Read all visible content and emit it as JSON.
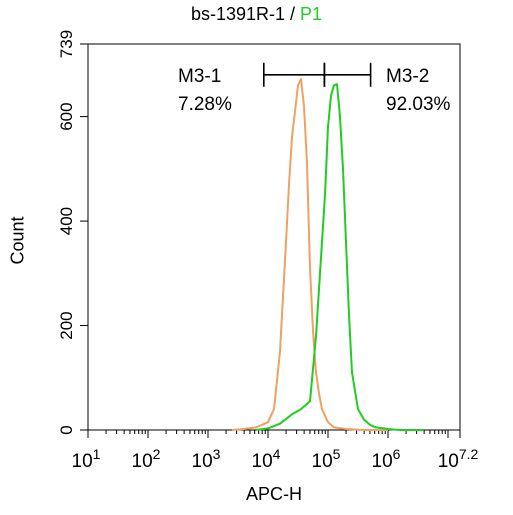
{
  "chart_data": {
    "type": "line",
    "title": {
      "main": "bs-1391R-1 /",
      "gate": "P1"
    },
    "xlabel": "APC-H",
    "ylabel": "Count",
    "xscale": "log",
    "xlim_log10": [
      1,
      7.2
    ],
    "x_tick_labels": [
      {
        "base": "10",
        "exp": "1"
      },
      {
        "base": "10",
        "exp": "2"
      },
      {
        "base": "10",
        "exp": "3"
      },
      {
        "base": "10",
        "exp": "4"
      },
      {
        "base": "10",
        "exp": "5"
      },
      {
        "base": "10",
        "exp": "6"
      },
      {
        "base": "10",
        "exp": "7.2"
      }
    ],
    "ylim": [
      0,
      739
    ],
    "y_ticks": [
      0,
      200,
      400,
      600,
      739
    ],
    "series": [
      {
        "color": "#f0a060",
        "x_log10": [
          3.4,
          3.6,
          3.8,
          4.0,
          4.1,
          4.2,
          4.3,
          4.35,
          4.4,
          4.45,
          4.5,
          4.55,
          4.6,
          4.65,
          4.7,
          4.75,
          4.8,
          4.85,
          4.9,
          5.0,
          5.1,
          5.3,
          5.6,
          6.0
        ],
        "y": [
          0,
          2,
          5,
          15,
          40,
          150,
          360,
          470,
          560,
          610,
          660,
          672,
          620,
          510,
          310,
          190,
          110,
          70,
          40,
          15,
          5,
          2,
          0,
          0
        ]
      },
      {
        "color": "#22cc22",
        "x_log10": [
          3.8,
          4.0,
          4.2,
          4.4,
          4.55,
          4.7,
          4.8,
          4.9,
          4.95,
          5.0,
          5.05,
          5.1,
          5.15,
          5.2,
          5.25,
          5.3,
          5.35,
          5.4,
          5.5,
          5.6,
          5.7,
          5.8,
          6.0,
          6.2,
          6.6
        ],
        "y": [
          0,
          3,
          12,
          30,
          40,
          55,
          180,
          360,
          450,
          580,
          640,
          660,
          662,
          600,
          500,
          360,
          220,
          110,
          40,
          20,
          10,
          5,
          2,
          0,
          0
        ]
      }
    ],
    "markers": [
      {
        "name": "M3-1",
        "percent": "7.28%",
        "x_start_log10": 3.93,
        "x_end_log10": 4.94,
        "y": 680
      },
      {
        "name": "M3-2",
        "percent": "92.03%",
        "x_start_log10": 4.94,
        "x_end_log10": 5.71,
        "y": 680
      }
    ]
  }
}
